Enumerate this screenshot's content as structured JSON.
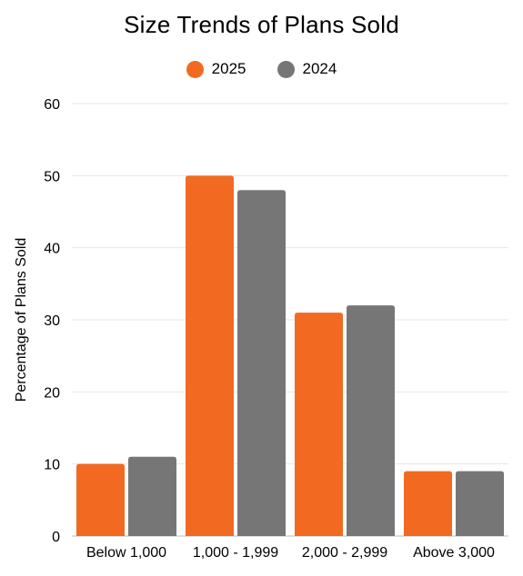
{
  "chart_data": {
    "type": "bar",
    "title": "Size Trends of Plans Sold",
    "xlabel": "",
    "ylabel": "Percentage of Plans Sold",
    "categories": [
      "Below 1,000",
      "1,000 - 1,999",
      "2,000 - 2,999",
      "Above 3,000"
    ],
    "series": [
      {
        "name": "2025",
        "values": [
          10,
          50,
          31,
          9
        ],
        "color": "#f26a21"
      },
      {
        "name": "2024",
        "values": [
          11,
          48,
          32,
          9
        ],
        "color": "#767676"
      }
    ],
    "ylim": [
      0,
      60
    ],
    "yticks": [
      0,
      10,
      20,
      30,
      40,
      50,
      60
    ],
    "grid": true,
    "legend_position": "top-center"
  }
}
